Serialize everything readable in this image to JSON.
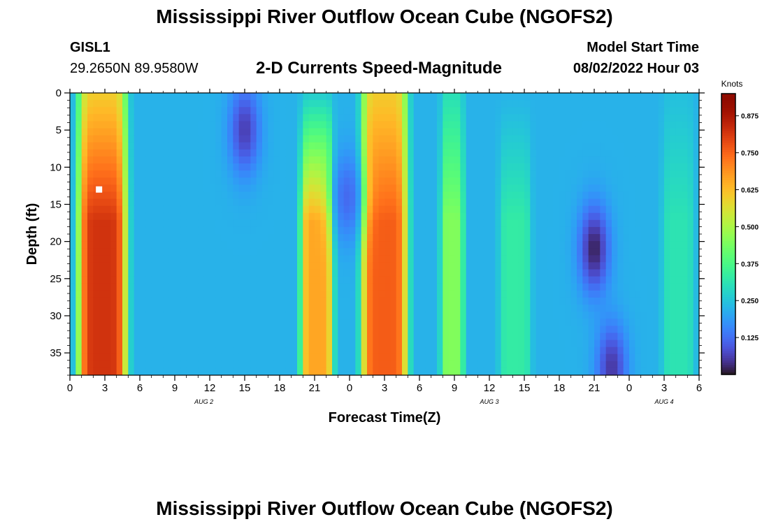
{
  "header": {
    "title": "Mississippi River Outflow Ocean Cube (NGOFS2)",
    "station_id": "GISL1",
    "station_coords": "29.2650N  89.9580W",
    "plot_title": "2-D Currents Speed-Magnitude",
    "model_start_label": "Model Start Time",
    "model_start_value": "08/02/2022 Hour 03"
  },
  "footer": {
    "title": "Mississippi River Outflow Ocean Cube (NGOFS2)"
  },
  "chart_data": {
    "type": "heatmap",
    "title": "2-D Currents Speed-Magnitude",
    "xlabel": "Forecast Time(Z)",
    "ylabel": "Depth (ft)",
    "x_tick_labels": [
      "0",
      "3",
      "6",
      "9",
      "12",
      "15",
      "18",
      "21",
      "0",
      "3",
      "6",
      "9",
      "12",
      "15",
      "18",
      "21",
      "0",
      "3",
      "6"
    ],
    "x_range_hours": [
      0,
      54
    ],
    "date_labels": [
      {
        "label": "AUG 2",
        "hour": 11.5
      },
      {
        "label": "AUG 3",
        "hour": 36
      },
      {
        "label": "AUG 4",
        "hour": 51
      }
    ],
    "y_ticks": [
      0,
      5,
      10,
      15,
      20,
      25,
      30,
      35
    ],
    "y_range_ft": [
      0,
      38
    ],
    "y_reversed": true,
    "colorbar": {
      "label": "Knots",
      "range": [
        0,
        0.95
      ],
      "ticks": [
        "0.875",
        "0.750",
        "0.625",
        "0.500",
        "0.375",
        "0.250",
        "0.125"
      ],
      "tick_values": [
        0.875,
        0.75,
        0.625,
        0.5,
        0.375,
        0.25,
        0.125
      ],
      "colormap": "turbo"
    },
    "marker": {
      "hour": 2.5,
      "depth_ft": 13,
      "color": "#ffffff"
    },
    "bands": [
      {
        "center_hour": 2.8,
        "half_width_hours": 2.1,
        "top_speed": 0.6,
        "bottom_speed": 0.82
      },
      {
        "center_hour": 27.0,
        "half_width_hours": 2.0,
        "top_speed": 0.6,
        "bottom_speed": 0.76
      },
      {
        "center_hour": 21.2,
        "half_width_hours": 1.4,
        "top_speed": 0.26,
        "bottom_speed": 0.66
      },
      {
        "center_hour": 32.8,
        "half_width_hours": 1.0,
        "top_speed": 0.3,
        "bottom_speed": 0.45
      },
      {
        "center_hour": 38.2,
        "half_width_hours": 1.4,
        "top_speed": 0.22,
        "bottom_speed": 0.33
      },
      {
        "center_hour": 52.2,
        "half_width_hours": 1.4,
        "top_speed": 0.24,
        "bottom_speed": 0.31
      }
    ],
    "lows": [
      {
        "center_hour": 15.0,
        "depth_ft": 5,
        "speed": 0.06
      },
      {
        "center_hour": 23.8,
        "depth_ft": 14,
        "speed": 0.12
      },
      {
        "center_hour": 45.0,
        "depth_ft": 21,
        "speed": 0.02
      },
      {
        "center_hour": 46.5,
        "depth_ft": 37,
        "speed": 0.05
      }
    ],
    "background_speed": 0.22
  }
}
